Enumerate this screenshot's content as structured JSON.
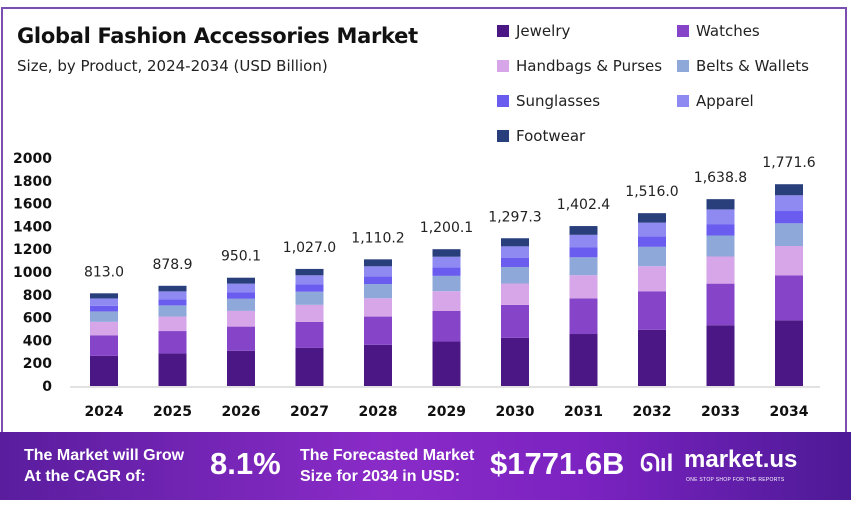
{
  "chart_data": {
    "type": "bar",
    "stacked": true,
    "title": "Global Fashion Accessories Market",
    "subtitle": "Size, by Product, 2024-2034 (USD Billion)",
    "xlabel": "",
    "ylabel": "",
    "ylim": [
      0,
      2000
    ],
    "yticks": [
      0,
      200,
      400,
      600,
      800,
      1000,
      1200,
      1400,
      1600,
      1800,
      2000
    ],
    "grid": false,
    "legend_position": "top-right",
    "categories": [
      "2024",
      "2025",
      "2026",
      "2027",
      "2028",
      "2029",
      "2030",
      "2031",
      "2032",
      "2033",
      "2034"
    ],
    "totals": [
      "813.0",
      "878.9",
      "950.1",
      "1,027.0",
      "1,110.2",
      "1,200.1",
      "1,297.3",
      "1,402.4",
      "1,516.0",
      "1,638.8",
      "1,771.6"
    ],
    "series": [
      {
        "name": "Jewelry",
        "color": "#4b1785",
        "values": [
          264,
          286,
          309,
          334,
          361,
          390,
          422,
          456,
          493,
          533,
          576
        ]
      },
      {
        "name": "Watches",
        "color": "#8645c9",
        "values": [
          181,
          196,
          212,
          229,
          248,
          268,
          289,
          313,
          338,
          365,
          395
        ]
      },
      {
        "name": "Handbags & Purses",
        "color": "#d7a6e8",
        "values": [
          118,
          127,
          138,
          149,
          161,
          174,
          188,
          203,
          220,
          238,
          257
        ]
      },
      {
        "name": "Belts & Wallets",
        "color": "#8ea8da",
        "values": [
          91,
          98,
          106,
          115,
          124,
          134,
          145,
          157,
          170,
          184,
          199
        ]
      },
      {
        "name": "Sunglasses",
        "color": "#6b5cf0",
        "values": [
          50,
          54,
          58,
          63,
          68,
          73,
          79,
          86,
          92,
          100,
          108
        ]
      },
      {
        "name": "Apparel",
        "color": "#8f8af2",
        "values": [
          64,
          69,
          75,
          81,
          88,
          95,
          102,
          111,
          120,
          129,
          138
        ]
      },
      {
        "name": "Footwear",
        "color": "#283f7c",
        "values": [
          45,
          49,
          52,
          56,
          61,
          66,
          71,
          77,
          83,
          90,
          97
        ]
      }
    ]
  },
  "banner": {
    "cagr_text_1": "The Market will Grow",
    "cagr_text_2": "At the CAGR of:",
    "cagr_value": "8.1%",
    "forecast_text_1": "The Forecasted Market",
    "forecast_text_2": "Size for 2034 in USD:",
    "forecast_value": "$1771.6B",
    "logo_text": "market.us",
    "logo_tagline": "ONE STOP SHOP FOR THE REPORTS"
  }
}
